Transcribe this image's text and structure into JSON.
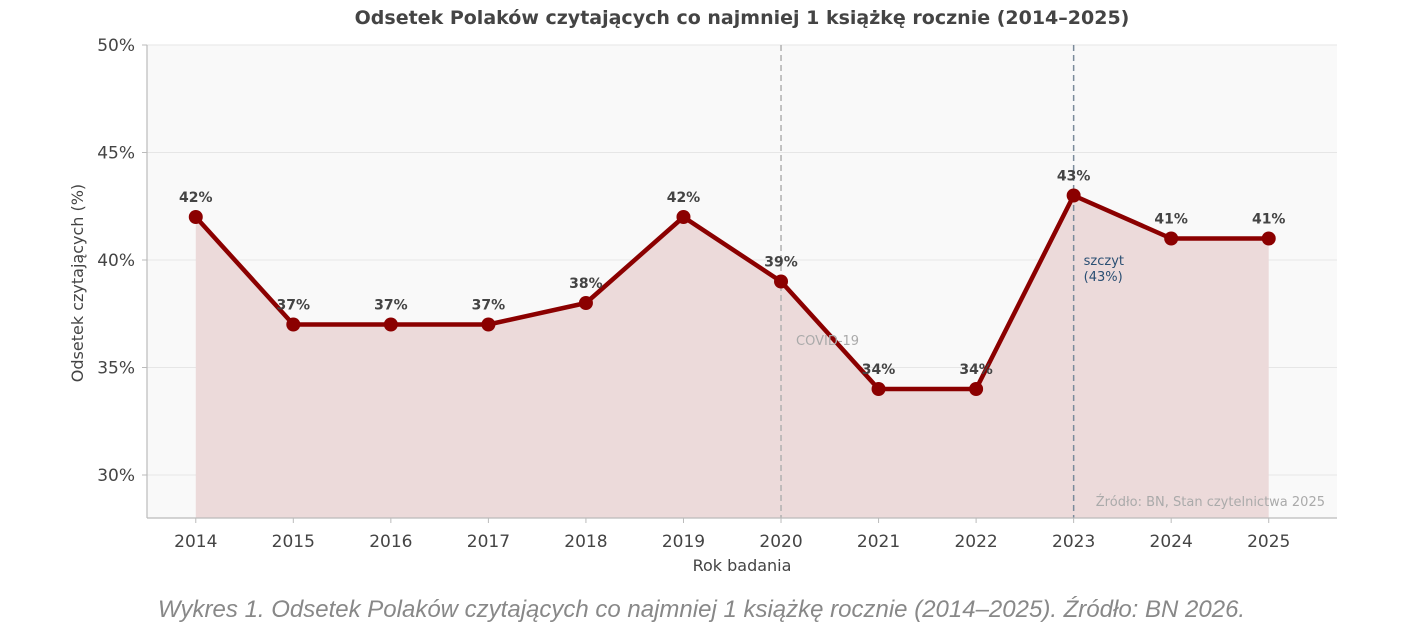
{
  "chart_data": {
    "type": "line",
    "title": "Odsetek Polaków czytających co najmniej 1 książkę rocznie (2014–2025)",
    "xlabel": "Rok badania",
    "ylabel": "Odsetek czytających (%)",
    "x": [
      2014,
      2015,
      2016,
      2017,
      2018,
      2019,
      2020,
      2021,
      2022,
      2023,
      2024,
      2025
    ],
    "values": [
      42,
      37,
      37,
      37,
      38,
      42,
      39,
      34,
      34,
      43,
      41,
      41
    ],
    "data_labels": [
      "42%",
      "37%",
      "37%",
      "37%",
      "38%",
      "42%",
      "39%",
      "34%",
      "34%",
      "43%",
      "41%",
      "41%"
    ],
    "xlim": [
      2013.5,
      2025.7
    ],
    "ylim": [
      28,
      50
    ],
    "yticks": [
      30,
      35,
      40,
      45,
      50
    ],
    "ytick_labels": [
      "30%",
      "35%",
      "40%",
      "45%",
      "50%"
    ],
    "xtick_labels": [
      "2014",
      "2015",
      "2016",
      "2017",
      "2018",
      "2019",
      "2020",
      "2021",
      "2022",
      "2023",
      "2024",
      "2025"
    ],
    "grid": "horizontal",
    "annotations": [
      {
        "x": 2020,
        "text": "COVID-19",
        "color": "#aaaaaa"
      },
      {
        "x": 2023,
        "text_lines": [
          "szczyt",
          "(43%)"
        ],
        "color": "#2a4f73"
      }
    ],
    "source_note": "Źródło: BN, Stan czytelnictwa 2025",
    "line_color": "#8b0000",
    "fill_color": "#ecdada"
  },
  "caption": "Wykres 1. Odsetek Polaków czytających co najmniej 1 książkę rocznie (2014–2025). Źródło: BN 2026."
}
